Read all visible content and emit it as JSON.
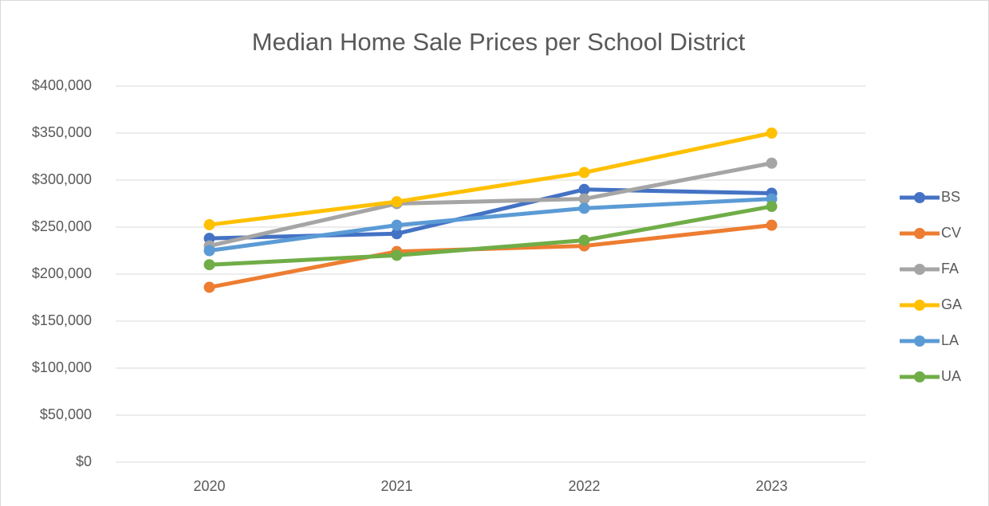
{
  "chart_data": {
    "type": "line",
    "title": "Median Home Sale Prices per School District",
    "categories": [
      "2020",
      "2021",
      "2022",
      "2023"
    ],
    "series": [
      {
        "name": "BS",
        "color": "#4472c4",
        "values": [
          238000,
          243000,
          290000,
          286000
        ]
      },
      {
        "name": "CV",
        "color": "#ed7d31",
        "values": [
          186000,
          224000,
          230000,
          252000
        ]
      },
      {
        "name": "FA",
        "color": "#a5a5a5",
        "values": [
          230000,
          275000,
          280000,
          318000
        ]
      },
      {
        "name": "GA",
        "color": "#ffc000",
        "values": [
          252500,
          277000,
          308000,
          350000
        ]
      },
      {
        "name": "LA",
        "color": "#5b9bd5",
        "values": [
          225000,
          252000,
          270000,
          280000
        ]
      },
      {
        "name": "UA",
        "color": "#70ad47",
        "values": [
          210000,
          220000,
          236000,
          272000
        ]
      }
    ],
    "ylim": [
      0,
      400000
    ],
    "yticks": [
      {
        "value": 0,
        "label": "$0"
      },
      {
        "value": 50000,
        "label": "$50,000"
      },
      {
        "value": 100000,
        "label": "$100,000"
      },
      {
        "value": 150000,
        "label": "$150,000"
      },
      {
        "value": 200000,
        "label": "$200,000"
      },
      {
        "value": 250000,
        "label": "$250,000"
      },
      {
        "value": 300000,
        "label": "$300,000"
      },
      {
        "value": 350000,
        "label": "$350,000"
      },
      {
        "value": 400000,
        "label": "$400,000"
      }
    ],
    "grid": true,
    "legend": "right"
  }
}
